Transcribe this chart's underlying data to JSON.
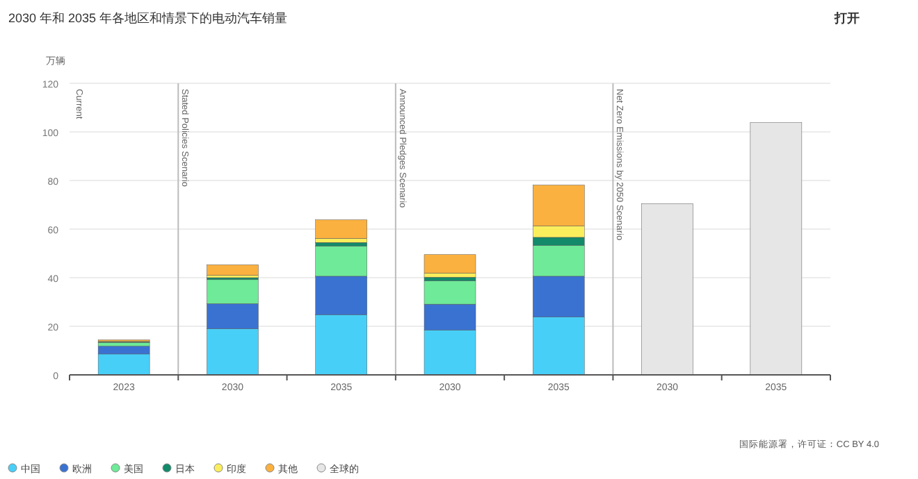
{
  "chart_data": {
    "type": "bar",
    "stacked": true,
    "title": "2030 年和 2035 年各地区和情景下的电动汽车销量",
    "ylabel": "万辆",
    "categories": [
      "2023",
      "2030",
      "2035",
      "2030",
      "2035",
      "2030",
      "2035"
    ],
    "series": [
      {
        "name": "中国",
        "color": "#48cff8",
        "values": [
          8.6,
          19,
          24.8,
          18.5,
          23.8,
          null,
          null
        ]
      },
      {
        "name": "欧洲",
        "color": "#3a72d2",
        "values": [
          3.2,
          10.3,
          15.8,
          10.6,
          16.8,
          null,
          null
        ]
      },
      {
        "name": "美国",
        "color": "#6eea98",
        "values": [
          1.5,
          9.9,
          12.4,
          9.6,
          12.7,
          null,
          null
        ]
      },
      {
        "name": "日本",
        "color": "#138a6a",
        "values": [
          0.3,
          0.8,
          1.5,
          1.5,
          3.3,
          null,
          null
        ]
      },
      {
        "name": "印度",
        "color": "#fbee5c",
        "values": [
          0.2,
          1,
          1.7,
          1.7,
          4.7,
          null,
          null
        ]
      },
      {
        "name": "其他",
        "color": "#fbb13f",
        "values": [
          0.6,
          4.3,
          7.6,
          7.6,
          16.8,
          null,
          null
        ]
      },
      {
        "name": "全球的",
        "color": "#e6e6e6",
        "values": [
          null,
          null,
          null,
          null,
          null,
          70.5,
          103.8
        ]
      }
    ],
    "ylim": [
      0,
      120
    ],
    "yticks": [
      0,
      20,
      40,
      60,
      80,
      100,
      120
    ],
    "grid": "y",
    "legend": "bottom left",
    "annotations": [
      "Current",
      "Stated Policies Scenario",
      "Announced Pledges Scenario",
      "Net Zero Emissions by 2050 Scenario",
      "国际能源署，许可证：CC BY 4.0",
      "打开"
    ]
  }
}
